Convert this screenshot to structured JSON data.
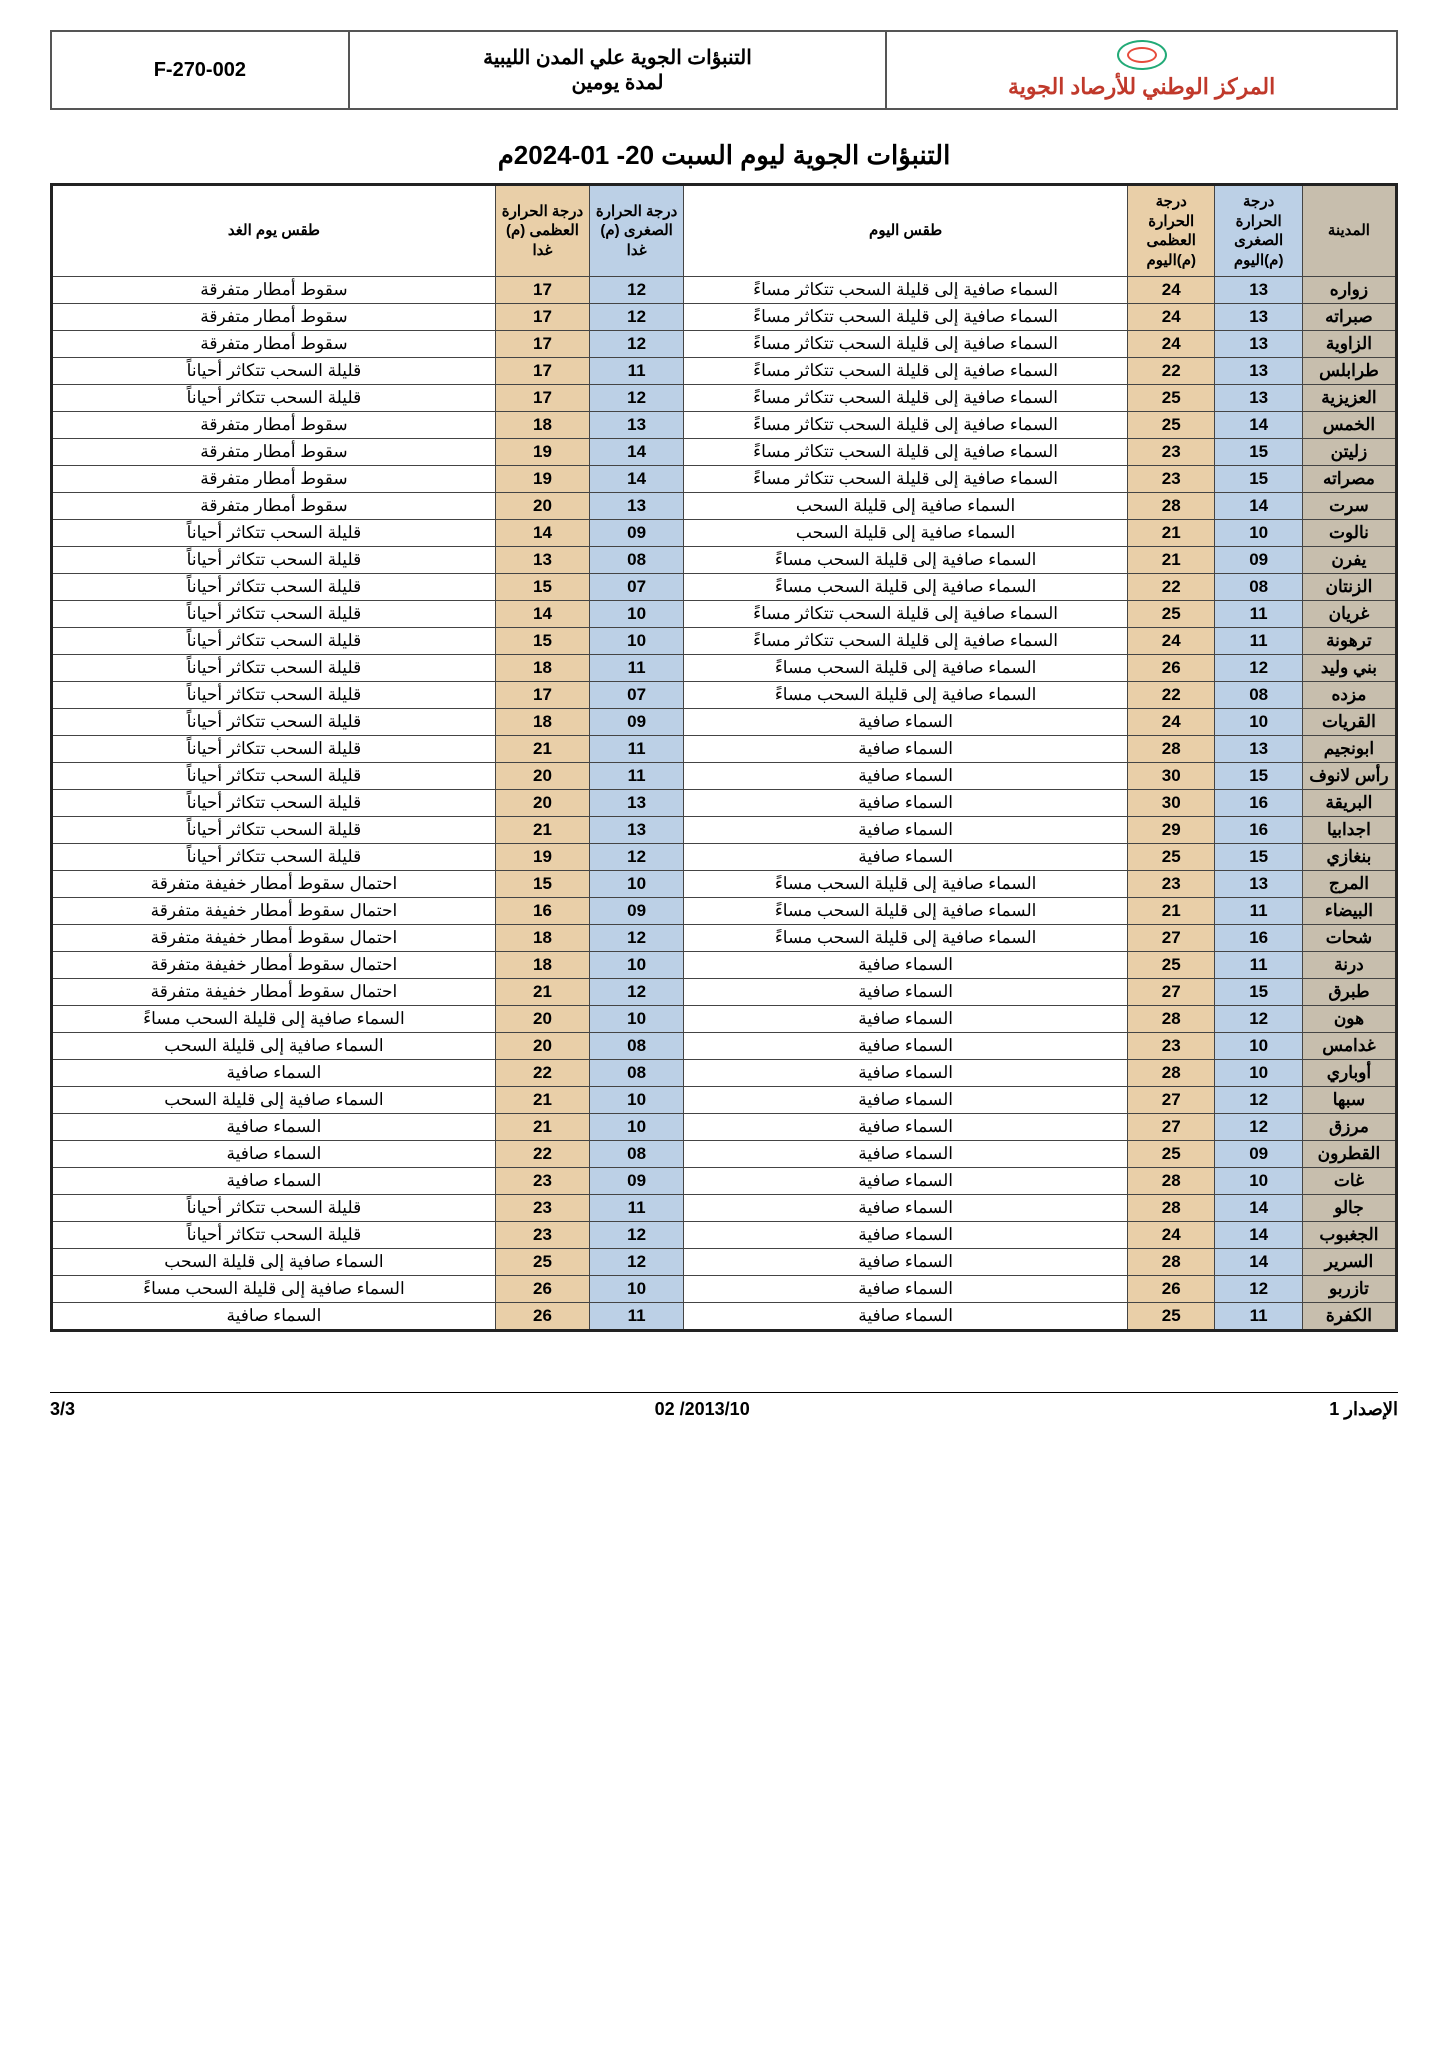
{
  "styling": {
    "colors": {
      "city_bg": "#c7bead",
      "min_bg": "#bcd0e6",
      "max_bg": "#e9cfa8",
      "wx_bg": "#ffffff",
      "border": "#444444",
      "outer_border": "#222222",
      "org_text": "#c0392b",
      "page_bg": "#ffffff"
    },
    "fonts": {
      "body_family": "Traditional Arabic, Arial, sans-serif",
      "title_size_pt": 20,
      "th_size_pt": 11,
      "td_size_pt": 13
    },
    "column_widths_pct": [
      7,
      6.5,
      6.5,
      33,
      7,
      7,
      33
    ]
  },
  "header": {
    "form_code": "F-270-002",
    "doc_title": "التنبؤات الجوية علي المدن الليبية\nلمدة يومين",
    "org_name": "المركز الوطني للأرصاد الجوية"
  },
  "page_title": "التنبؤات الجوية ليوم السبت  20- 01-2024م",
  "columns": {
    "city": "المدينة",
    "min_today": "درجة الحرارة الصغرى (م)اليوم",
    "max_today": "درجة الحرارة العظمى (م)اليوم",
    "wx_today": "طقس اليوم",
    "min_tomorrow": "درجة الحرارة الصغرى (م) غدا",
    "max_tomorrow": "درجة الحرارة العظمى (م) غدا",
    "wx_tomorrow": "طقس يوم الغد"
  },
  "footer": {
    "issue": "الإصدار 1",
    "date": "2013/10/ 02",
    "page": "3/3"
  },
  "rows": [
    {
      "city": "زواره",
      "min_t": "13",
      "max_t": "24",
      "wx_t": "السماء صافية إلى قليلة السحب تتكاثر مساءً",
      "min_tm": "12",
      "max_tm": "17",
      "wx_tm": "سقوط أمطار متفرقة"
    },
    {
      "city": "صبراته",
      "min_t": "13",
      "max_t": "24",
      "wx_t": "السماء صافية إلى قليلة السحب تتكاثر مساءً",
      "min_tm": "12",
      "max_tm": "17",
      "wx_tm": "سقوط أمطار متفرقة"
    },
    {
      "city": "الزاوية",
      "min_t": "13",
      "max_t": "24",
      "wx_t": "السماء صافية إلى قليلة السحب تتكاثر مساءً",
      "min_tm": "12",
      "max_tm": "17",
      "wx_tm": "سقوط أمطار متفرقة"
    },
    {
      "city": "طرابلس",
      "min_t": "13",
      "max_t": "22",
      "wx_t": "السماء صافية إلى قليلة السحب تتكاثر مساءً",
      "min_tm": "11",
      "max_tm": "17",
      "wx_tm": "قليلة السحب تتكاثر أحياناً"
    },
    {
      "city": "العزيزية",
      "min_t": "13",
      "max_t": "25",
      "wx_t": "السماء صافية إلى قليلة السحب تتكاثر مساءً",
      "min_tm": "12",
      "max_tm": "17",
      "wx_tm": "قليلة السحب تتكاثر أحياناً"
    },
    {
      "city": "الخمس",
      "min_t": "14",
      "max_t": "25",
      "wx_t": "السماء صافية إلى قليلة السحب تتكاثر مساءً",
      "min_tm": "13",
      "max_tm": "18",
      "wx_tm": "سقوط أمطار متفرقة"
    },
    {
      "city": "زليتن",
      "min_t": "15",
      "max_t": "23",
      "wx_t": "السماء صافية إلى قليلة السحب تتكاثر مساءً",
      "min_tm": "14",
      "max_tm": "19",
      "wx_tm": "سقوط أمطار متفرقة"
    },
    {
      "city": "مصراته",
      "min_t": "15",
      "max_t": "23",
      "wx_t": "السماء صافية إلى قليلة السحب تتكاثر مساءً",
      "min_tm": "14",
      "max_tm": "19",
      "wx_tm": "سقوط أمطار متفرقة"
    },
    {
      "city": "سرت",
      "min_t": "14",
      "max_t": "28",
      "wx_t": "السماء صافية إلى قليلة السحب",
      "min_tm": "13",
      "max_tm": "20",
      "wx_tm": "سقوط أمطار متفرقة"
    },
    {
      "city": "نالوت",
      "min_t": "10",
      "max_t": "21",
      "wx_t": "السماء صافية إلى قليلة السحب",
      "min_tm": "09",
      "max_tm": "14",
      "wx_tm": "قليلة السحب تتكاثر أحياناً"
    },
    {
      "city": "يفرن",
      "min_t": "09",
      "max_t": "21",
      "wx_t": "السماء صافية إلى قليلة السحب مساءً",
      "min_tm": "08",
      "max_tm": "13",
      "wx_tm": "قليلة السحب تتكاثر أحياناً"
    },
    {
      "city": "الزنتان",
      "min_t": "08",
      "max_t": "22",
      "wx_t": "السماء صافية إلى قليلة السحب مساءً",
      "min_tm": "07",
      "max_tm": "15",
      "wx_tm": "قليلة السحب تتكاثر أحياناً"
    },
    {
      "city": "غريان",
      "min_t": "11",
      "max_t": "25",
      "wx_t": "السماء صافية إلى قليلة السحب تتكاثر مساءً",
      "min_tm": "10",
      "max_tm": "14",
      "wx_tm": "قليلة السحب تتكاثر أحياناً"
    },
    {
      "city": "ترهونة",
      "min_t": "11",
      "max_t": "24",
      "wx_t": "السماء صافية إلى قليلة السحب تتكاثر مساءً",
      "min_tm": "10",
      "max_tm": "15",
      "wx_tm": "قليلة السحب تتكاثر أحياناً"
    },
    {
      "city": "بني وليد",
      "min_t": "12",
      "max_t": "26",
      "wx_t": "السماء صافية إلى قليلة السحب مساءً",
      "min_tm": "11",
      "max_tm": "18",
      "wx_tm": "قليلة السحب تتكاثر أحياناً"
    },
    {
      "city": "مزده",
      "min_t": "08",
      "max_t": "22",
      "wx_t": "السماء صافية إلى قليلة السحب مساءً",
      "min_tm": "07",
      "max_tm": "17",
      "wx_tm": "قليلة السحب تتكاثر أحياناً"
    },
    {
      "city": "القريات",
      "min_t": "10",
      "max_t": "24",
      "wx_t": "السماء صافية",
      "min_tm": "09",
      "max_tm": "18",
      "wx_tm": "قليلة السحب تتكاثر أحياناً"
    },
    {
      "city": "ابونجيم",
      "min_t": "13",
      "max_t": "28",
      "wx_t": "السماء صافية",
      "min_tm": "11",
      "max_tm": "21",
      "wx_tm": "قليلة السحب تتكاثر أحياناً"
    },
    {
      "city": "رأس لانوف",
      "min_t": "15",
      "max_t": "30",
      "wx_t": "السماء صافية",
      "min_tm": "11",
      "max_tm": "20",
      "wx_tm": "قليلة السحب تتكاثر أحياناً"
    },
    {
      "city": "البريقة",
      "min_t": "16",
      "max_t": "30",
      "wx_t": "السماء صافية",
      "min_tm": "13",
      "max_tm": "20",
      "wx_tm": "قليلة السحب تتكاثر أحياناً"
    },
    {
      "city": "اجدابيا",
      "min_t": "16",
      "max_t": "29",
      "wx_t": "السماء صافية",
      "min_tm": "13",
      "max_tm": "21",
      "wx_tm": "قليلة السحب تتكاثر أحياناً"
    },
    {
      "city": "بنغازي",
      "min_t": "15",
      "max_t": "25",
      "wx_t": "السماء صافية",
      "min_tm": "12",
      "max_tm": "19",
      "wx_tm": "قليلة السحب تتكاثر أحياناً"
    },
    {
      "city": "المرج",
      "min_t": "13",
      "max_t": "23",
      "wx_t": "السماء صافية إلى قليلة السحب مساءً",
      "min_tm": "10",
      "max_tm": "15",
      "wx_tm": "احتمال سقوط أمطار خفيفة متفرقة"
    },
    {
      "city": "البيضاء",
      "min_t": "11",
      "max_t": "21",
      "wx_t": "السماء صافية إلى قليلة السحب مساءً",
      "min_tm": "09",
      "max_tm": "16",
      "wx_tm": "احتمال سقوط أمطار خفيفة متفرقة"
    },
    {
      "city": "شحات",
      "min_t": "16",
      "max_t": "27",
      "wx_t": "السماء صافية إلى قليلة السحب مساءً",
      "min_tm": "12",
      "max_tm": "18",
      "wx_tm": "احتمال سقوط أمطار خفيفة متفرقة"
    },
    {
      "city": "درنة",
      "min_t": "11",
      "max_t": "25",
      "wx_t": "السماء صافية",
      "min_tm": "10",
      "max_tm": "18",
      "wx_tm": "احتمال سقوط أمطار خفيفة متفرقة"
    },
    {
      "city": "طبرق",
      "min_t": "15",
      "max_t": "27",
      "wx_t": "السماء صافية",
      "min_tm": "12",
      "max_tm": "21",
      "wx_tm": "احتمال سقوط أمطار خفيفة متفرقة"
    },
    {
      "city": "هون",
      "min_t": "12",
      "max_t": "28",
      "wx_t": "السماء صافية",
      "min_tm": "10",
      "max_tm": "20",
      "wx_tm": "السماء صافية إلى قليلة السحب مساءً"
    },
    {
      "city": "غدامس",
      "min_t": "10",
      "max_t": "23",
      "wx_t": "السماء صافية",
      "min_tm": "08",
      "max_tm": "20",
      "wx_tm": "السماء صافية إلى قليلة السحب"
    },
    {
      "city": "أوباري",
      "min_t": "10",
      "max_t": "28",
      "wx_t": "السماء صافية",
      "min_tm": "08",
      "max_tm": "22",
      "wx_tm": "السماء صافية"
    },
    {
      "city": "سبها",
      "min_t": "12",
      "max_t": "27",
      "wx_t": "السماء صافية",
      "min_tm": "10",
      "max_tm": "21",
      "wx_tm": "السماء صافية إلى قليلة السحب"
    },
    {
      "city": "مرزق",
      "min_t": "12",
      "max_t": "27",
      "wx_t": "السماء صافية",
      "min_tm": "10",
      "max_tm": "21",
      "wx_tm": "السماء صافية"
    },
    {
      "city": "القطرون",
      "min_t": "09",
      "max_t": "25",
      "wx_t": "السماء صافية",
      "min_tm": "08",
      "max_tm": "22",
      "wx_tm": "السماء صافية"
    },
    {
      "city": "غات",
      "min_t": "10",
      "max_t": "28",
      "wx_t": "السماء صافية",
      "min_tm": "09",
      "max_tm": "23",
      "wx_tm": "السماء صافية"
    },
    {
      "city": "جالو",
      "min_t": "14",
      "max_t": "28",
      "wx_t": "السماء صافية",
      "min_tm": "11",
      "max_tm": "23",
      "wx_tm": "قليلة السحب تتكاثر أحياناً"
    },
    {
      "city": "الجغبوب",
      "min_t": "14",
      "max_t": "24",
      "wx_t": "السماء صافية",
      "min_tm": "12",
      "max_tm": "23",
      "wx_tm": "قليلة السحب تتكاثر أحياناً"
    },
    {
      "city": "السرير",
      "min_t": "14",
      "max_t": "28",
      "wx_t": "السماء صافية",
      "min_tm": "12",
      "max_tm": "25",
      "wx_tm": "السماء صافية إلى قليلة السحب"
    },
    {
      "city": "تازربو",
      "min_t": "12",
      "max_t": "26",
      "wx_t": "السماء صافية",
      "min_tm": "10",
      "max_tm": "26",
      "wx_tm": "السماء صافية إلى قليلة السحب مساءً"
    },
    {
      "city": "الكفرة",
      "min_t": "11",
      "max_t": "25",
      "wx_t": "السماء صافية",
      "min_tm": "11",
      "max_tm": "26",
      "wx_tm": "السماء صافية"
    }
  ]
}
